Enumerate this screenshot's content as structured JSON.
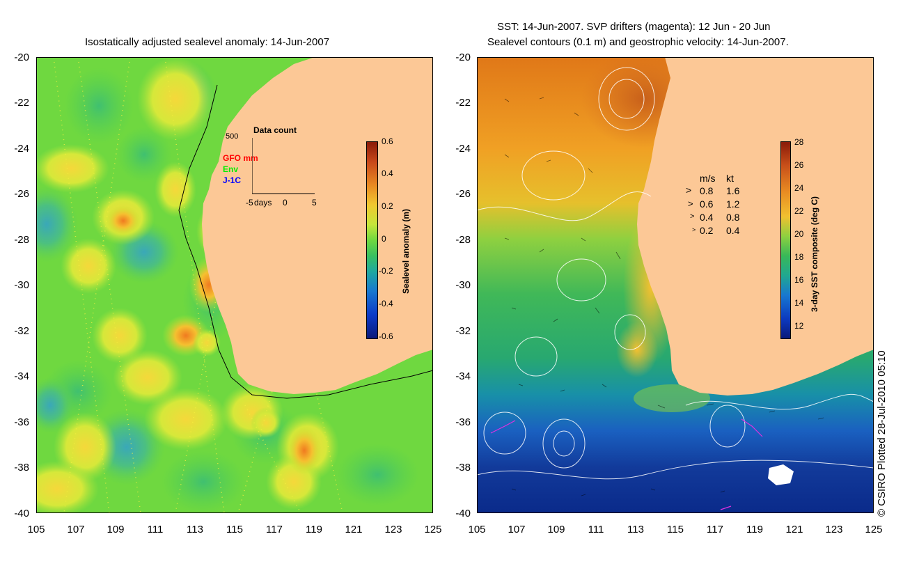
{
  "left_panel": {
    "title": "Isostatically adjusted sealevel anomaly: 14-Jun-2007",
    "colorbar": {
      "label": "Sealevel anomaly (m)",
      "ticks": [
        "0.6",
        "0.4",
        "0.2",
        "0",
        "-0.2",
        "-0.4",
        "-0.6"
      ]
    },
    "inset": {
      "title": "Data count",
      "ymax_label": "500",
      "legend": [
        {
          "label": "GFO mm",
          "color": "#ff0000"
        },
        {
          "label": "Env",
          "color": "#00ee00"
        },
        {
          "label": "J-1C",
          "color": "#0000ff"
        }
      ],
      "x_ticks": [
        "-5",
        "days",
        "0",
        "5"
      ]
    }
  },
  "right_panel": {
    "title_line1": "SST: 14-Jun-2007. SVP drifters (magenta): 12 Jun - 20 Jun",
    "title_line2": "Sealevel contours (0.1 m) and geostrophic velocity: 14-Jun-2007.",
    "colorbar": {
      "label": "3-day SST composite (deg C)",
      "ticks": [
        "28",
        "26",
        "24",
        "22",
        "20",
        "18",
        "16",
        "14",
        "12"
      ]
    },
    "velocity_legend": {
      "header_ms": "m/s",
      "header_kt": "kt",
      "rows": [
        {
          "ms": "0.8",
          "kt": "1.6"
        },
        {
          "ms": "0.6",
          "kt": "1.2"
        },
        {
          "ms": "0.4",
          "kt": "0.8"
        },
        {
          "ms": "0.2",
          "kt": "0.4"
        }
      ]
    }
  },
  "axes": {
    "y_ticks": [
      "-20",
      "-22",
      "-24",
      "-26",
      "-28",
      "-30",
      "-32",
      "-34",
      "-36",
      "-38",
      "-40"
    ],
    "x_ticks": [
      "105",
      "107",
      "109",
      "111",
      "113",
      "115",
      "117",
      "119",
      "121",
      "123",
      "125"
    ]
  },
  "credit": "© CSIRO Plotted 28-Jul-2010 05:10",
  "colors": {
    "land": "#fcc896",
    "sla_background": "#6fd840",
    "sst_warm": "#e07818",
    "sst_cold": "#0a2a8a"
  }
}
